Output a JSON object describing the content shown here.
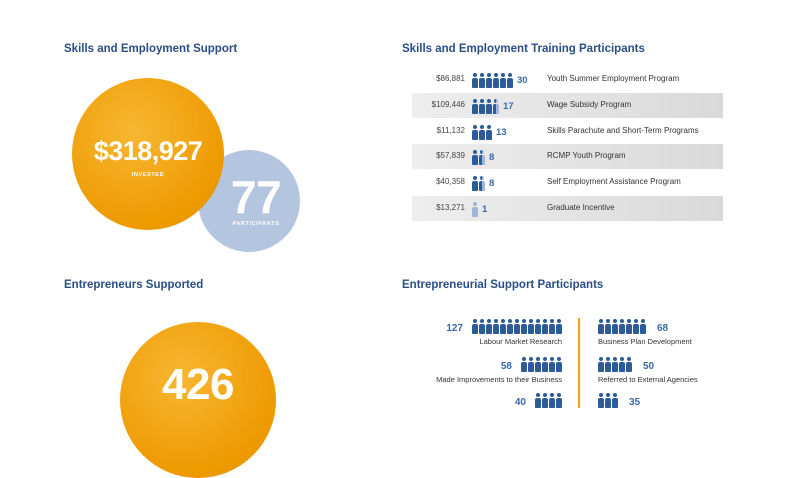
{
  "skills": {
    "heading": "Skills and Employment Support",
    "invested_value": "$318,927",
    "invested_label": "INVESTED",
    "participants_value": "77",
    "participants_label": "PARTICIPANTS"
  },
  "training": {
    "heading": "Skills and Employment Training Participants",
    "rows": [
      {
        "amount": "$86,881",
        "count": "30",
        "label": "Youth Summer Employment Program",
        "icons": 6,
        "partial": false,
        "shaded": false
      },
      {
        "amount": "$109,446",
        "count": "17",
        "label": "Wage Subsidy Program",
        "icons": 4,
        "partial": true,
        "shaded": true
      },
      {
        "amount": "$11,132",
        "count": "13",
        "label": "Skills Parachute and Short-Term Programs",
        "icons": 3,
        "partial": false,
        "shaded": false
      },
      {
        "amount": "$57,839",
        "count": "8",
        "label": "RCMP Youth Program",
        "icons": 2,
        "partial": true,
        "shaded": true
      },
      {
        "amount": "$40,358",
        "count": "8",
        "label": "Self Employment Assistance Program",
        "icons": 2,
        "partial": true,
        "shaded": false
      },
      {
        "amount": "$13,271",
        "count": "1",
        "label": "Graduate Incentive",
        "icons": 1,
        "partial": false,
        "light": true,
        "shaded": true
      }
    ]
  },
  "entrepreneurs": {
    "heading": "Entrepreneurs Supported",
    "value": "426"
  },
  "entrepreneurial_support": {
    "heading": "Entrepreneurial Support Participants",
    "left": [
      {
        "count": "127",
        "label": "Labour Market Research",
        "icons": 13
      },
      {
        "count": "58",
        "label": "Made Improvements to their Business",
        "icons": 6
      },
      {
        "count": "40",
        "label": "",
        "icons": 4
      }
    ],
    "right": [
      {
        "count": "68",
        "label": "Business Plan Development",
        "icons": 7
      },
      {
        "count": "50",
        "label": "Referred to External Agencies",
        "icons": 5
      },
      {
        "count": "35",
        "label": "",
        "icons": 3
      }
    ]
  }
}
